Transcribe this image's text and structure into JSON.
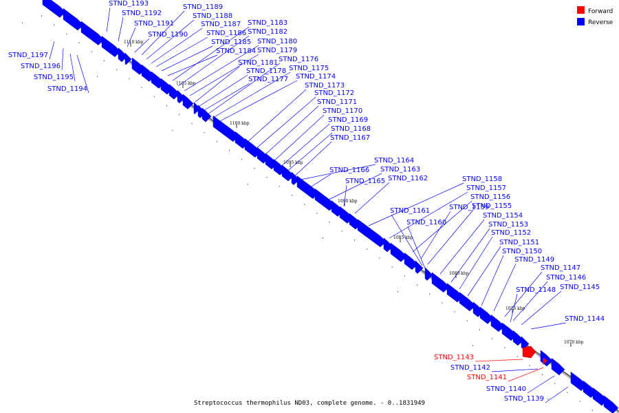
{
  "legend": {
    "forward_label": "Forward",
    "reverse_label": "Reverse",
    "forward_color": "#ff0000",
    "reverse_color": "#0000ff"
  },
  "caption": "Streptococcus thermophilus ND03, complete genome. - 0..1831949",
  "scale": {
    "unit": "kbp",
    "ticks": [
      "1110 kbp",
      "1105 kbp",
      "1100 kbp",
      "1095 kbp",
      "1090 kbp",
      "1085 kbp",
      "1080 kbp",
      "1075 kbp",
      "1070 kbp"
    ]
  },
  "genes": [
    {
      "name": "STND_1193",
      "strand": "reverse"
    },
    {
      "name": "STND_1192",
      "strand": "reverse"
    },
    {
      "name": "STND_1191",
      "strand": "reverse"
    },
    {
      "name": "STND_1190",
      "strand": "reverse"
    },
    {
      "name": "STND_1189",
      "strand": "reverse"
    },
    {
      "name": "STND_1188",
      "strand": "reverse"
    },
    {
      "name": "STND_1187",
      "strand": "reverse"
    },
    {
      "name": "STND_1186",
      "strand": "reverse"
    },
    {
      "name": "STND_1185",
      "strand": "reverse"
    },
    {
      "name": "STND_1184",
      "strand": "reverse"
    },
    {
      "name": "STND_1183",
      "strand": "reverse"
    },
    {
      "name": "STND_1182",
      "strand": "reverse"
    },
    {
      "name": "STND_1180",
      "strand": "reverse"
    },
    {
      "name": "STND_1179",
      "strand": "reverse"
    },
    {
      "name": "STND_1181",
      "strand": "reverse"
    },
    {
      "name": "STND_1178",
      "strand": "reverse"
    },
    {
      "name": "STND_1177",
      "strand": "reverse"
    },
    {
      "name": "STND_1176",
      "strand": "reverse"
    },
    {
      "name": "STND_1175",
      "strand": "reverse"
    },
    {
      "name": "STND_1174",
      "strand": "reverse"
    },
    {
      "name": "STND_1173",
      "strand": "reverse"
    },
    {
      "name": "STND_1172",
      "strand": "reverse"
    },
    {
      "name": "STND_1171",
      "strand": "reverse"
    },
    {
      "name": "STND_1170",
      "strand": "reverse"
    },
    {
      "name": "STND_1169",
      "strand": "reverse"
    },
    {
      "name": "STND_1168",
      "strand": "reverse"
    },
    {
      "name": "STND_1167",
      "strand": "reverse"
    },
    {
      "name": "STND_1164",
      "strand": "reverse"
    },
    {
      "name": "STND_1166",
      "strand": "reverse"
    },
    {
      "name": "STND_1163",
      "strand": "reverse"
    },
    {
      "name": "STND_1165",
      "strand": "reverse"
    },
    {
      "name": "STND_1162",
      "strand": "reverse"
    },
    {
      "name": "STND_1158",
      "strand": "reverse"
    },
    {
      "name": "STND_1157",
      "strand": "reverse"
    },
    {
      "name": "STND_1156",
      "strand": "reverse"
    },
    {
      "name": "STND_1159",
      "strand": "reverse"
    },
    {
      "name": "STND_1155",
      "strand": "reverse"
    },
    {
      "name": "STND_1161",
      "strand": "reverse"
    },
    {
      "name": "STND_1154",
      "strand": "reverse"
    },
    {
      "name": "STND_1160",
      "strand": "reverse"
    },
    {
      "name": "STND_1153",
      "strand": "reverse"
    },
    {
      "name": "STND_1152",
      "strand": "reverse"
    },
    {
      "name": "STND_1151",
      "strand": "reverse"
    },
    {
      "name": "STND_1150",
      "strand": "reverse"
    },
    {
      "name": "STND_1149",
      "strand": "reverse"
    },
    {
      "name": "STND_1147",
      "strand": "reverse"
    },
    {
      "name": "STND_1146",
      "strand": "reverse"
    },
    {
      "name": "STND_1148",
      "strand": "reverse"
    },
    {
      "name": "STND_1145",
      "strand": "reverse"
    },
    {
      "name": "STND_1144",
      "strand": "reverse"
    },
    {
      "name": "STND_1143",
      "strand": "forward"
    },
    {
      "name": "STND_1142",
      "strand": "reverse"
    },
    {
      "name": "STND_1141",
      "strand": "forward"
    },
    {
      "name": "STND_1140",
      "strand": "reverse"
    },
    {
      "name": "STND_1139",
      "strand": "reverse"
    },
    {
      "name": "STND_1197",
      "strand": "reverse"
    },
    {
      "name": "STND_1196",
      "strand": "reverse"
    },
    {
      "name": "STND_1195",
      "strand": "reverse"
    },
    {
      "name": "STND_1194",
      "strand": "reverse"
    }
  ]
}
